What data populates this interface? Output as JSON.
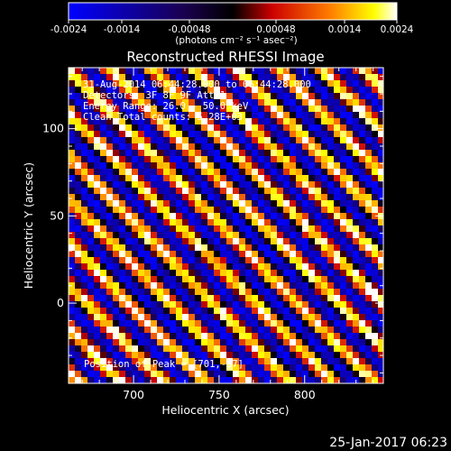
{
  "chart_data": {
    "type": "heatmap",
    "title": "Reconstructed RHESSI Image",
    "xlabel": "Heliocentric X (arcsec)",
    "ylabel": "Heliocentric Y (arcsec)",
    "xlim": [
      662,
      846
    ],
    "ylim": [
      -46,
      135
    ],
    "x_ticks": [
      700,
      750,
      800
    ],
    "x_tick_labels": [
      "700",
      "750",
      "800"
    ],
    "y_ticks": [
      0,
      50,
      100
    ],
    "y_tick_labels": [
      "0",
      "50",
      "100"
    ],
    "grid": false,
    "colorbar": {
      "range": [
        -0.0024,
        0.0024
      ],
      "tick_labels": [
        "-0.0024",
        "-0.0014",
        "-0.00048",
        "0.00048",
        "0.0014",
        "0.0024"
      ],
      "unit_label": "(photons cm⁻² s⁻¹ asec⁻²)",
      "placement": "top",
      "colormap": [
        "#0000ff",
        "#000000",
        "#ff0000",
        "#ffff00",
        "#ffffff"
      ]
    },
    "pattern": {
      "description_values": "diagonal stripe modulation pattern",
      "stripe_period_arcsec": 17.5,
      "stripe_direction": "upper-left to lower-right"
    },
    "annotations": {
      "time_range": "31-Aug-2014 06:44:28.000 to 06:44:28.000",
      "detectors": "Detectors: 3F 8F 9F Att 1",
      "energy_range": "Energy Range: 26.0 - 50.0 keV",
      "clean": "Clean      Total counts: 5.28E+03",
      "position": "Position of Peak = [701,-37]"
    }
  },
  "footer": {
    "timestamp": "25-Jan-2017 06:23"
  }
}
